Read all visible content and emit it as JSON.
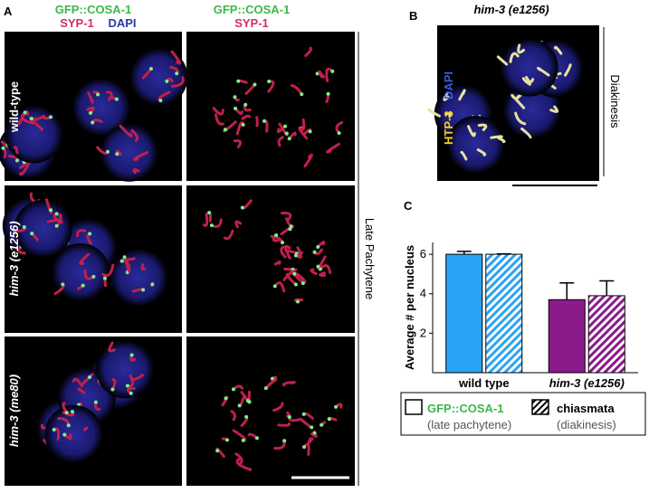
{
  "panel_a": {
    "label": "A",
    "col1_header": {
      "line1": "GFP::COSA-1",
      "line2a": "SYP-1",
      "line2b": "DAPI"
    },
    "col2_header": {
      "line1": "GFP::COSA-1",
      "line2": "SYP-1"
    },
    "rows": [
      "wild-type",
      "him-3 (e1256)",
      "him-3 (me80)"
    ],
    "side_label": "Late Pachytene"
  },
  "panel_b": {
    "label": "B",
    "title": "him-3 (e1256)",
    "stain1": "HTP-3",
    "stain2": "DAPI",
    "side_label": "Diakinesis"
  },
  "panel_c": {
    "label": "C"
  },
  "chart_data": {
    "type": "bar",
    "y_label": "Average # per nucleus",
    "categories": [
      "wild type",
      "him-3 (e1256)"
    ],
    "colors": [
      "#2aa3f5",
      "#8b1a8b"
    ],
    "series": [
      {
        "name": "GFP::COSA-1",
        "note": "(late pachytene)",
        "pattern": "solid",
        "values": [
          6.0,
          3.7
        ],
        "errors": [
          0.15,
          0.85
        ]
      },
      {
        "name": "chiasmata",
        "note": "(diakinesis)",
        "pattern": "hatch",
        "values": [
          6.0,
          3.9
        ],
        "errors": [
          0.02,
          0.75
        ]
      }
    ],
    "ylim": [
      0,
      6.6
    ],
    "yticks": [
      2,
      4,
      6
    ]
  }
}
